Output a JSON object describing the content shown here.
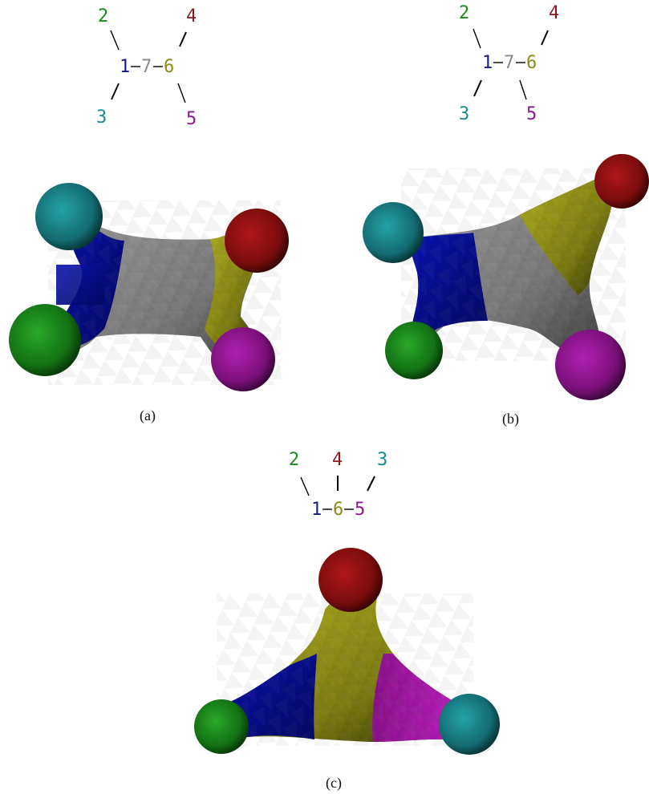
{
  "panels": [
    {
      "caption": "(a)",
      "tree": {
        "nodes": [
          {
            "label": "2",
            "color": "#1a8a1a"
          },
          {
            "label": "4",
            "color": "#8a1a1a"
          },
          {
            "label": "1",
            "color": "#1a1a8a"
          },
          {
            "label": "7",
            "color": "#8a8a8a"
          },
          {
            "label": "6",
            "color": "#8a8a1a"
          },
          {
            "label": "3",
            "color": "#1a8a8a"
          },
          {
            "label": "5",
            "color": "#8a1a8a"
          }
        ]
      }
    },
    {
      "caption": "(b)",
      "tree": {
        "nodes": [
          {
            "label": "2",
            "color": "#1a8a1a"
          },
          {
            "label": "4",
            "color": "#8a1a1a"
          },
          {
            "label": "1",
            "color": "#1a1a8a"
          },
          {
            "label": "7",
            "color": "#8a8a8a"
          },
          {
            "label": "6",
            "color": "#8a8a1a"
          },
          {
            "label": "3",
            "color": "#1a8a8a"
          },
          {
            "label": "5",
            "color": "#8a1a8a"
          }
        ]
      }
    },
    {
      "caption": "(c)",
      "tree": {
        "nodes": [
          {
            "label": "2",
            "color": "#1a8a1a"
          },
          {
            "label": "4",
            "color": "#8a1a1a"
          },
          {
            "label": "3",
            "color": "#1a8a8a"
          },
          {
            "label": "1",
            "color": "#1a1a8a"
          },
          {
            "label": "6",
            "color": "#8a8a1a"
          },
          {
            "label": "5",
            "color": "#8a1a8a"
          }
        ]
      }
    }
  ],
  "segment_colors": {
    "green": "#1f8f1f",
    "teal": "#1e8f95",
    "blue": "#0b0fa0",
    "gray": "#8c8c8c",
    "olive": "#9a9a1a",
    "red": "#8f0f0f",
    "purple": "#8f1a8f"
  }
}
